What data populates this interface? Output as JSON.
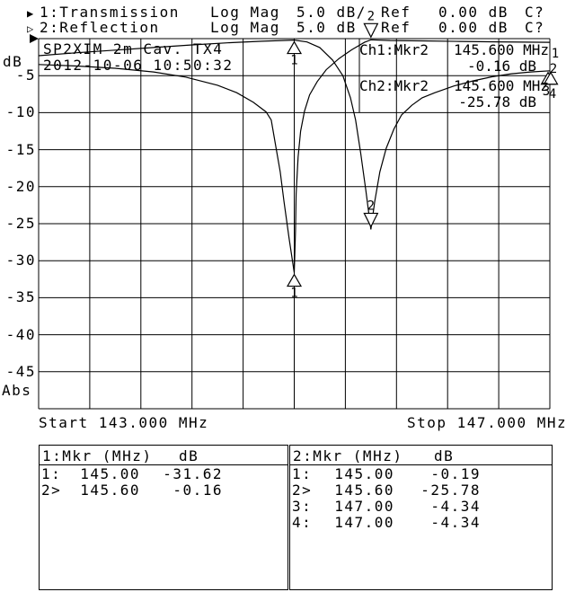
{
  "header": {
    "ch1": {
      "bullet": "▶",
      "label": "1:Transmission",
      "format": "Log Mag",
      "scale": "5.0 dB/",
      "ref_label": "Ref",
      "ref_value": "0.00 dB",
      "cal_status": "C?"
    },
    "ch2": {
      "bullet": "▷",
      "label": "2:Reflection",
      "format": "Log Mag",
      "scale": "5.0 dB",
      "ref_label": "Ref",
      "ref_value": "0.00 dB",
      "cal_status": "C?"
    }
  },
  "plot": {
    "title": "SP2XIM 2m Cav. TX4",
    "timestamp": "2012-10-06 10:50:32",
    "y_axis_unit": "dB",
    "y_axis_mode": "Abs",
    "y_tick_labels": [
      "-5",
      "-10",
      "-15",
      "-20",
      "-25",
      "-30",
      "-35",
      "-40",
      "-45"
    ],
    "x_start_label": "Start 143.000 MHz",
    "x_stop_label": "Stop 147.000 MHz",
    "readout": {
      "ch1_title": "Ch1:Mkr2",
      "ch1_freq": "145.600 MHz",
      "ch1_value": "-0.16 dB",
      "ch2_title": "Ch2:Mkr2",
      "ch2_freq": "145.600 MHz",
      "ch2_value": "-25.78 dB"
    },
    "trace_end_labels": {
      "trace1": "1",
      "trace2": "2"
    }
  },
  "marker_tables": {
    "left": {
      "title": "1:Mkr (MHz)",
      "unit": "dB",
      "rows": [
        [
          "1:",
          "145.00",
          "-31.62"
        ],
        [
          "2>",
          "145.60",
          "-0.16"
        ]
      ]
    },
    "right": {
      "title": "2:Mkr (MHz)",
      "unit": "dB",
      "rows": [
        [
          "1:",
          "145.00",
          "-0.19"
        ],
        [
          "2>",
          "145.60",
          "-25.78"
        ],
        [
          "3:",
          "147.00",
          "-4.34"
        ],
        [
          "4:",
          "147.00",
          "-4.34"
        ]
      ]
    }
  },
  "chart_data": {
    "type": "line",
    "title": "SP2XIM 2m Cav. TX4",
    "ylabel": "dB",
    "x_start_label": "Start 143.000 MHz",
    "x_stop_label": "Stop 147.000 MHz",
    "xlim": [
      143,
      147
    ],
    "ylim": [
      -50,
      0
    ],
    "x_divisions": 10,
    "y_divisions": 10,
    "grid": true,
    "scale_db_per_div": 5.0,
    "ref_db": 0.0,
    "series": [
      {
        "name": "1:Transmission",
        "x": [
          143.0,
          143.3,
          143.6,
          143.9,
          144.15,
          144.4,
          144.55,
          144.68,
          144.78,
          144.82,
          144.86,
          144.89,
          144.92,
          144.96,
          145.0,
          145.01,
          145.015,
          145.03,
          145.05,
          145.08,
          145.12,
          145.18,
          145.25,
          145.35,
          145.45,
          145.55,
          145.6,
          145.75,
          146.0,
          146.3,
          146.6,
          147.0
        ],
        "y": [
          -3.5,
          -3.7,
          -4.0,
          -4.5,
          -5.2,
          -6.3,
          -7.3,
          -8.6,
          -9.9,
          -11,
          -15,
          -18,
          -22,
          -27,
          -31.62,
          -26,
          -21,
          -16,
          -12.5,
          -9.8,
          -7.6,
          -5.8,
          -4.2,
          -2.7,
          -1.5,
          -0.5,
          -0.16,
          -0.25,
          -0.3,
          -0.38,
          -0.44,
          -0.5
        ]
      },
      {
        "name": "2:Reflection",
        "x": [
          143.0,
          143.3,
          143.6,
          143.9,
          144.2,
          144.5,
          144.75,
          144.9,
          145.0,
          145.1,
          145.2,
          145.3,
          145.38,
          145.44,
          145.48,
          145.52,
          145.56,
          145.6,
          145.63,
          145.67,
          145.72,
          145.78,
          145.84,
          145.92,
          146.0,
          146.1,
          146.25,
          146.4,
          146.55,
          146.7,
          146.85,
          147.0
        ],
        "y": [
          -2.3,
          -1.9,
          -1.55,
          -1.2,
          -0.85,
          -0.55,
          -0.35,
          -0.25,
          -0.19,
          -0.45,
          -1.2,
          -2.9,
          -5,
          -8,
          -11,
          -15.5,
          -20.5,
          -25.78,
          -22,
          -18,
          -14.8,
          -12.2,
          -10.3,
          -9,
          -8,
          -7.3,
          -6.4,
          -5.7,
          -5.15,
          -4.75,
          -4.5,
          -4.34
        ]
      }
    ],
    "markers": [
      {
        "trace": 1,
        "label": "1",
        "freq_mhz": 145.0,
        "db": -31.62,
        "style": "below"
      },
      {
        "trace": 1,
        "label": "2",
        "freq_mhz": 145.6,
        "db": -0.16,
        "style": "above"
      },
      {
        "trace": 2,
        "label": "1",
        "freq_mhz": 145.0,
        "db": -0.19,
        "style": "below"
      },
      {
        "trace": 2,
        "label": "2",
        "freq_mhz": 145.6,
        "db": -25.78,
        "style": "above"
      },
      {
        "trace": 2,
        "label": "3",
        "freq_mhz": 147.0,
        "db": -4.34,
        "style": "below",
        "dx": -2,
        "ldx": -2,
        "ldy": 0
      },
      {
        "trace": 2,
        "label": "4",
        "freq_mhz": 147.0,
        "db": -4.34,
        "style": "below",
        "dx": 1,
        "ldx": 2,
        "ldy": 3
      }
    ],
    "colors": {
      "trace": "#000000",
      "grid": "#000000",
      "background": "#ffffff"
    }
  }
}
